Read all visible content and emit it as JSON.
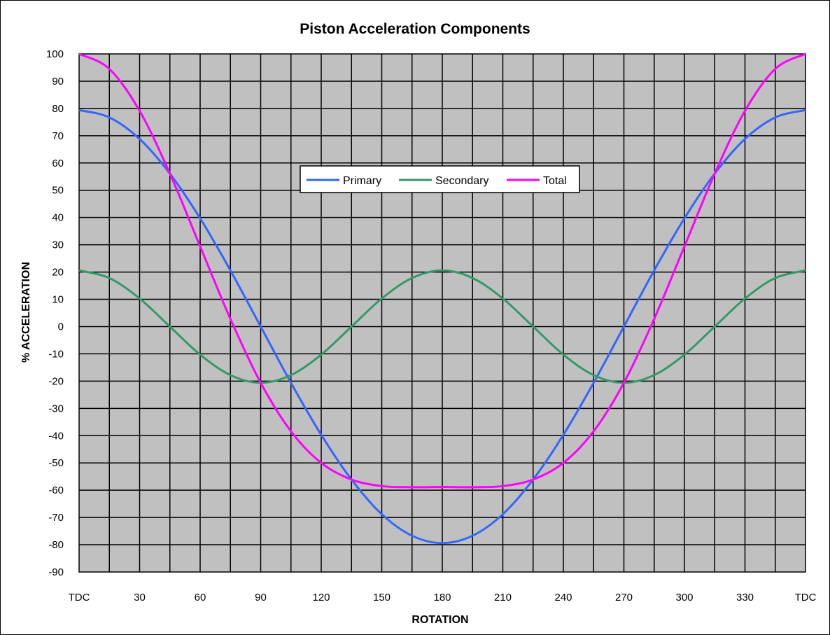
{
  "chart_data": {
    "type": "line",
    "title": "Piston Acceleration Components",
    "xlabel": "ROTATION",
    "ylabel": "% ACCELERATION",
    "x_tick_labels": [
      "TDC",
      "30",
      "60",
      "90",
      "120",
      "150",
      "180",
      "210",
      "240",
      "270",
      "300",
      "330",
      "TDC"
    ],
    "x_tick_values": [
      0,
      30,
      60,
      90,
      120,
      150,
      180,
      210,
      240,
      270,
      300,
      330,
      360
    ],
    "y_tick_labels": [
      "100",
      "90",
      "80",
      "70",
      "60",
      "50",
      "40",
      "30",
      "20",
      "10",
      "0",
      "-10",
      "-20",
      "-30",
      "-40",
      "-50",
      "-60",
      "-70",
      "-80",
      "-90"
    ],
    "xlim": [
      0,
      360
    ],
    "ylim": [
      -90,
      100
    ],
    "x_gridline_step": 15,
    "y_gridline_step": 10,
    "grid": true,
    "plot_background": "#c0c0c0",
    "legend_position": "top-center",
    "x": [
      0,
      15,
      30,
      45,
      60,
      75,
      90,
      105,
      120,
      135,
      150,
      165,
      180,
      195,
      210,
      225,
      240,
      255,
      270,
      285,
      300,
      315,
      330,
      345,
      360
    ],
    "series": [
      {
        "name": "Primary",
        "color": "#3366ff",
        "values": [
          79.4,
          76.7,
          68.8,
          56.1,
          39.7,
          20.6,
          0.0,
          -20.6,
          -39.7,
          -56.1,
          -68.8,
          -76.7,
          -79.4,
          -76.7,
          -68.8,
          -56.1,
          -39.7,
          -20.6,
          0.0,
          20.6,
          39.7,
          56.1,
          68.8,
          76.7,
          79.4
        ]
      },
      {
        "name": "Secondary",
        "color": "#339966",
        "values": [
          20.6,
          17.8,
          10.3,
          0.0,
          -10.3,
          -17.8,
          -20.6,
          -17.8,
          -10.3,
          0.0,
          10.3,
          17.8,
          20.6,
          17.8,
          10.3,
          0.0,
          -10.3,
          -17.8,
          -20.6,
          -17.8,
          -10.3,
          0.0,
          10.3,
          17.8,
          20.6
        ]
      },
      {
        "name": "Total",
        "color": "#ff00ff",
        "values": [
          100.0,
          94.5,
          79.1,
          56.1,
          29.4,
          2.8,
          -20.6,
          -38.4,
          -50.0,
          -56.1,
          -58.5,
          -58.9,
          -58.8,
          -58.9,
          -58.5,
          -56.1,
          -50.0,
          -38.4,
          -20.6,
          2.8,
          29.4,
          56.1,
          79.1,
          94.5,
          100.0
        ]
      }
    ]
  }
}
